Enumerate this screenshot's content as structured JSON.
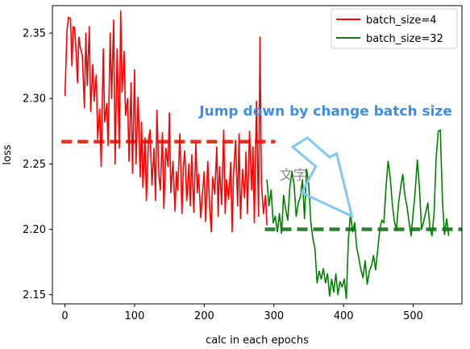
{
  "chart_data": {
    "type": "line",
    "xlabel": "calc in each epochs",
    "ylabel": "loss",
    "xlim": [
      -18,
      570
    ],
    "ylim": [
      2.143,
      2.371
    ],
    "xticks": [
      0,
      100,
      200,
      300,
      400,
      500
    ],
    "yticks": [
      2.15,
      2.2,
      2.25,
      2.3,
      2.35
    ],
    "grid": false,
    "legend_position": "top-right",
    "series": [
      {
        "name": "batch_size=4",
        "color": "#ff0000",
        "x": [
          0,
          3,
          5,
          8,
          10,
          12,
          14,
          16,
          18,
          20,
          22,
          25,
          28,
          30,
          32,
          35,
          37,
          40,
          42,
          45,
          47,
          50,
          52,
          55,
          57,
          60,
          62,
          65,
          67,
          70,
          72,
          75,
          78,
          80,
          82,
          85,
          87,
          90,
          92,
          95,
          97,
          100,
          102,
          105,
          108,
          110,
          112,
          115,
          117,
          120,
          122,
          125,
          128,
          130,
          132,
          135,
          137,
          140,
          142,
          145,
          148,
          150,
          152,
          155,
          158,
          160,
          162,
          165,
          168,
          170,
          172,
          175,
          178,
          180,
          182,
          185,
          188,
          190,
          192,
          195,
          198,
          200,
          202,
          205,
          208,
          210,
          212,
          215,
          218,
          220,
          222,
          225,
          228,
          230,
          232,
          235,
          238,
          240,
          242,
          245,
          248,
          250,
          252,
          255,
          258,
          260,
          262,
          265,
          268,
          270,
          272,
          275,
          278,
          280,
          282,
          285,
          288,
          290
        ],
        "values": [
          2.302,
          2.352,
          2.362,
          2.361,
          2.325,
          2.355,
          2.354,
          2.336,
          2.312,
          2.347,
          2.339,
          2.333,
          2.293,
          2.35,
          2.31,
          2.355,
          2.29,
          2.326,
          2.298,
          2.318,
          2.269,
          2.292,
          2.248,
          2.338,
          2.282,
          2.296,
          2.264,
          2.35,
          2.3,
          2.36,
          2.25,
          2.338,
          2.262,
          2.367,
          2.305,
          2.336,
          2.287,
          2.3,
          2.252,
          2.312,
          2.243,
          2.322,
          2.25,
          2.301,
          2.24,
          2.282,
          2.232,
          2.27,
          2.222,
          2.268,
          2.276,
          2.234,
          2.262,
          2.222,
          2.291,
          2.241,
          2.23,
          2.274,
          2.216,
          2.262,
          2.248,
          2.289,
          2.228,
          2.252,
          2.214,
          2.244,
          2.23,
          2.273,
          2.212,
          2.247,
          2.26,
          2.222,
          2.25,
          2.218,
          2.257,
          2.213,
          2.266,
          2.228,
          2.242,
          2.209,
          2.231,
          2.244,
          2.206,
          2.252,
          2.215,
          2.198,
          2.24,
          2.227,
          2.263,
          2.21,
          2.248,
          2.219,
          2.276,
          2.212,
          2.238,
          2.223,
          2.251,
          2.198,
          2.241,
          2.268,
          2.218,
          2.273,
          2.208,
          2.246,
          2.224,
          2.259,
          2.212,
          2.275,
          2.23,
          2.263,
          2.205,
          2.298,
          2.21,
          2.347,
          2.236,
          2.212,
          2.226,
          2.203
        ]
      },
      {
        "name": "batch_size=32",
        "color": "#008000",
        "x": [
          290,
          293,
          296,
          299,
          302,
          305,
          308,
          311,
          314,
          317,
          320,
          323,
          326,
          329,
          332,
          335,
          338,
          341,
          344,
          347,
          350,
          353,
          356,
          359,
          362,
          365,
          368,
          371,
          374,
          377,
          380,
          383,
          386,
          389,
          392,
          395,
          398,
          401,
          404,
          407,
          410,
          413,
          416,
          419,
          422,
          425,
          428,
          431,
          434,
          437,
          440,
          443,
          446,
          449,
          452,
          455,
          458,
          461,
          464,
          467,
          470,
          473,
          476,
          479,
          482,
          485,
          488,
          491,
          494,
          497,
          500,
          503,
          506,
          509,
          512,
          515,
          518,
          521,
          524,
          527,
          530,
          533,
          536,
          539,
          542,
          545,
          548,
          551
        ],
        "values": [
          2.238,
          2.218,
          2.23,
          2.205,
          2.21,
          2.198,
          2.212,
          2.197,
          2.226,
          2.215,
          2.207,
          2.233,
          2.244,
          2.234,
          2.21,
          2.22,
          2.225,
          2.238,
          2.208,
          2.246,
          2.235,
          2.206,
          2.193,
          2.185,
          2.159,
          2.168,
          2.162,
          2.17,
          2.159,
          2.166,
          2.149,
          2.162,
          2.152,
          2.166,
          2.15,
          2.16,
          2.156,
          2.162,
          2.147,
          2.193,
          2.212,
          2.198,
          2.205,
          2.186,
          2.178,
          2.169,
          2.163,
          2.176,
          2.158,
          2.168,
          2.172,
          2.18,
          2.169,
          2.184,
          2.2,
          2.207,
          2.205,
          2.232,
          2.252,
          2.24,
          2.22,
          2.206,
          2.2,
          2.22,
          2.232,
          2.242,
          2.226,
          2.218,
          2.206,
          2.195,
          2.212,
          2.23,
          2.253,
          2.232,
          2.2,
          2.206,
          2.213,
          2.22,
          2.201,
          2.195,
          2.212,
          2.254,
          2.275,
          2.276,
          2.222,
          2.196,
          2.208,
          2.195
        ]
      }
    ],
    "reference_lines": [
      {
        "y": 2.267,
        "x_start": -5,
        "x_end": 302,
        "color": "#e8321e"
      },
      {
        "y": 2.2,
        "x_start": 287,
        "x_end": 570,
        "color": "#2e7d32"
      }
    ],
    "annotation": {
      "text": "Jump down by change batch size",
      "color": "#3b8ef0",
      "label_x": 193,
      "label_y": 2.287
    },
    "watermark": {
      "text": "文字",
      "label_x": 308,
      "label_y": 2.238
    },
    "arrow": {
      "color": "#80c8f2",
      "tail_left": [
        327,
        2.263
      ],
      "tail_right": [
        348,
        2.27
      ],
      "neck_left": [
        360,
        2.248
      ],
      "neck_right": [
        380,
        2.255
      ],
      "wing_left": [
        340,
        2.228
      ],
      "wing_right": [
        390,
        2.258
      ],
      "tip": [
        412,
        2.21
      ]
    }
  }
}
